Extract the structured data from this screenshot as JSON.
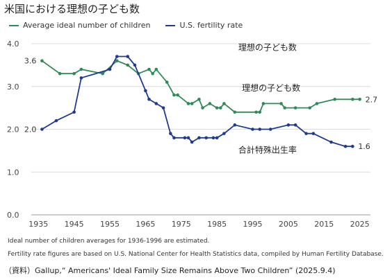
{
  "title": "米国における理想の子ども数",
  "chart_data": {
    "type": "line",
    "title": "米国における理想の子ども数",
    "xlabel": "",
    "ylabel": "",
    "xlim": [
      1933,
      2028
    ],
    "ylim": [
      0,
      4.0
    ],
    "x_ticks": [
      1935,
      1945,
      1955,
      1965,
      1975,
      1985,
      1995,
      2005,
      2015,
      2025
    ],
    "y_ticks": [
      0.0,
      1.0,
      2.0,
      3.0,
      4.0
    ],
    "y_tick_labels": [
      "0.0",
      "1.0",
      "2.0",
      "3.0",
      "4.0"
    ],
    "grid": "horizontal",
    "legend": "top-left",
    "series": [
      {
        "name": "Average ideal number of children",
        "color": "#2e8b57",
        "x": [
          1936,
          1941,
          1945,
          1947,
          1953,
          1957,
          1960,
          1963,
          1966,
          1967,
          1968,
          1971,
          1973,
          1974,
          1977,
          1978,
          1980,
          1981,
          1983,
          1985,
          1986,
          1987,
          1990,
          1996,
          1997,
          1998,
          2003,
          2004,
          2007,
          2011,
          2013,
          2018,
          2023,
          2025
        ],
        "values": [
          3.6,
          3.3,
          3.3,
          3.4,
          3.3,
          3.6,
          3.5,
          3.3,
          3.4,
          3.3,
          3.4,
          3.1,
          2.8,
          2.8,
          2.6,
          2.6,
          2.7,
          2.5,
          2.6,
          2.5,
          2.5,
          2.6,
          2.4,
          2.4,
          2.4,
          2.6,
          2.6,
          2.5,
          2.5,
          2.5,
          2.6,
          2.7,
          2.7,
          2.7
        ],
        "labels": [
          {
            "x": 1936,
            "text": "3.6",
            "side": "left"
          },
          {
            "x": 2025,
            "text": "2.7",
            "side": "right"
          }
        ]
      },
      {
        "name": "U.S. fertility rate",
        "color": "#1f3a8f",
        "x": [
          1936,
          1940,
          1945,
          1947,
          1955,
          1957,
          1960,
          1962,
          1965,
          1966,
          1968,
          1970,
          1972,
          1973,
          1976,
          1977,
          1978,
          1980,
          1982,
          1984,
          1985,
          1987,
          1990,
          1995,
          1997,
          2000,
          2005,
          2007,
          2010,
          2012,
          2017,
          2021,
          2023
        ],
        "values": [
          2.0,
          2.2,
          2.4,
          3.2,
          3.4,
          3.7,
          3.7,
          3.5,
          2.9,
          2.7,
          2.6,
          2.5,
          1.9,
          1.8,
          1.8,
          1.8,
          1.7,
          1.8,
          1.8,
          1.8,
          1.8,
          1.9,
          2.1,
          2.0,
          2.0,
          2.0,
          2.1,
          2.1,
          1.9,
          1.9,
          1.7,
          1.6,
          1.6
        ],
        "labels": [
          {
            "x": 1936,
            "text": "2.0",
            "side": "left"
          },
          {
            "x": 2023,
            "text": "1.6",
            "side": "right"
          }
        ]
      }
    ],
    "annotations": [
      {
        "text": "理想の子ども数",
        "x": 1991,
        "y": 3.85
      },
      {
        "text": "理想の子ども数",
        "x": 1992,
        "y": 2.9
      },
      {
        "text": "合計特殊出生率",
        "x": 1991,
        "y": 1.45
      }
    ]
  },
  "notes": [
    "Ideal number of children averages for 1936-1996 are estimated.",
    "Fertility rate figures are based on U.S. National Center for Health Statistics data, compiled by Human Fertility Database."
  ],
  "source": "（資料）Gallup,“ Americans' Ideal Family Size Remains Above Two Children” (2025.9.4)"
}
